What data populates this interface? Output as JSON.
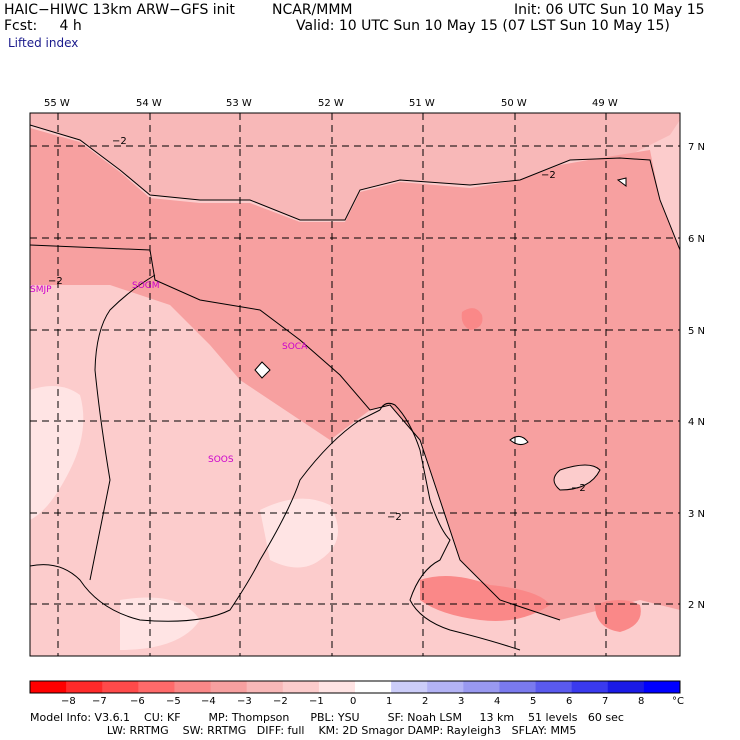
{
  "header": {
    "model": "HAIC−HIWC 13km ARW−GFS init",
    "org": "NCAR/MMM",
    "init": "Init: 06 UTC Sun 10 May 15",
    "fcst": "Fcst:     4 h",
    "valid": "Valid: 10 UTC Sun 10 May 15 (07 LST Sun 10 May 15)",
    "field": "Lifted index"
  },
  "map": {
    "lon_labels": [
      "55 W",
      "54 W",
      "53 W",
      "52 W",
      "51 W",
      "50 W",
      "49 W"
    ],
    "lat_labels": [
      "7 N",
      "6 N",
      "5 N",
      "4 N",
      "3 N",
      "2 N"
    ],
    "stations": [
      "SMJP",
      "SOGM",
      "SOCA",
      "SOOS"
    ],
    "contour_labels": [
      "−2",
      "−2",
      "−2",
      "−2",
      "−2"
    ]
  },
  "colorbar": {
    "labels": [
      "−8",
      "−7",
      "−6",
      "−5",
      "−4",
      "−3",
      "−2",
      "−1",
      "0",
      "1",
      "2",
      "3",
      "4",
      "5",
      "6",
      "7",
      "8"
    ],
    "unit": "°C",
    "colors": [
      "#ff0000",
      "#ff2a2a",
      "#ff4a4a",
      "#ff6a6a",
      "#fa8888",
      "#f7a0a0",
      "#f8b8b8",
      "#fccccc",
      "#ffe4e4",
      "#ffffff",
      "#cccdf9",
      "#b3b3f5",
      "#9999f0",
      "#7a7aee",
      "#5a5aee",
      "#3a3aee",
      "#1a1ae6",
      "#0000ff"
    ]
  },
  "footer": {
    "line1": "Model Info: V3.6.1    CU: KF        MP: Thompson      PBL: YSU        SF: Noah LSM     13 km    51 levels   60 sec",
    "line2": "                      LW: RRTMG    SW: RRTMG   DIFF: full    KM: 2D Smagor DAMP: Rayleigh3   SFLAY: MM5"
  }
}
